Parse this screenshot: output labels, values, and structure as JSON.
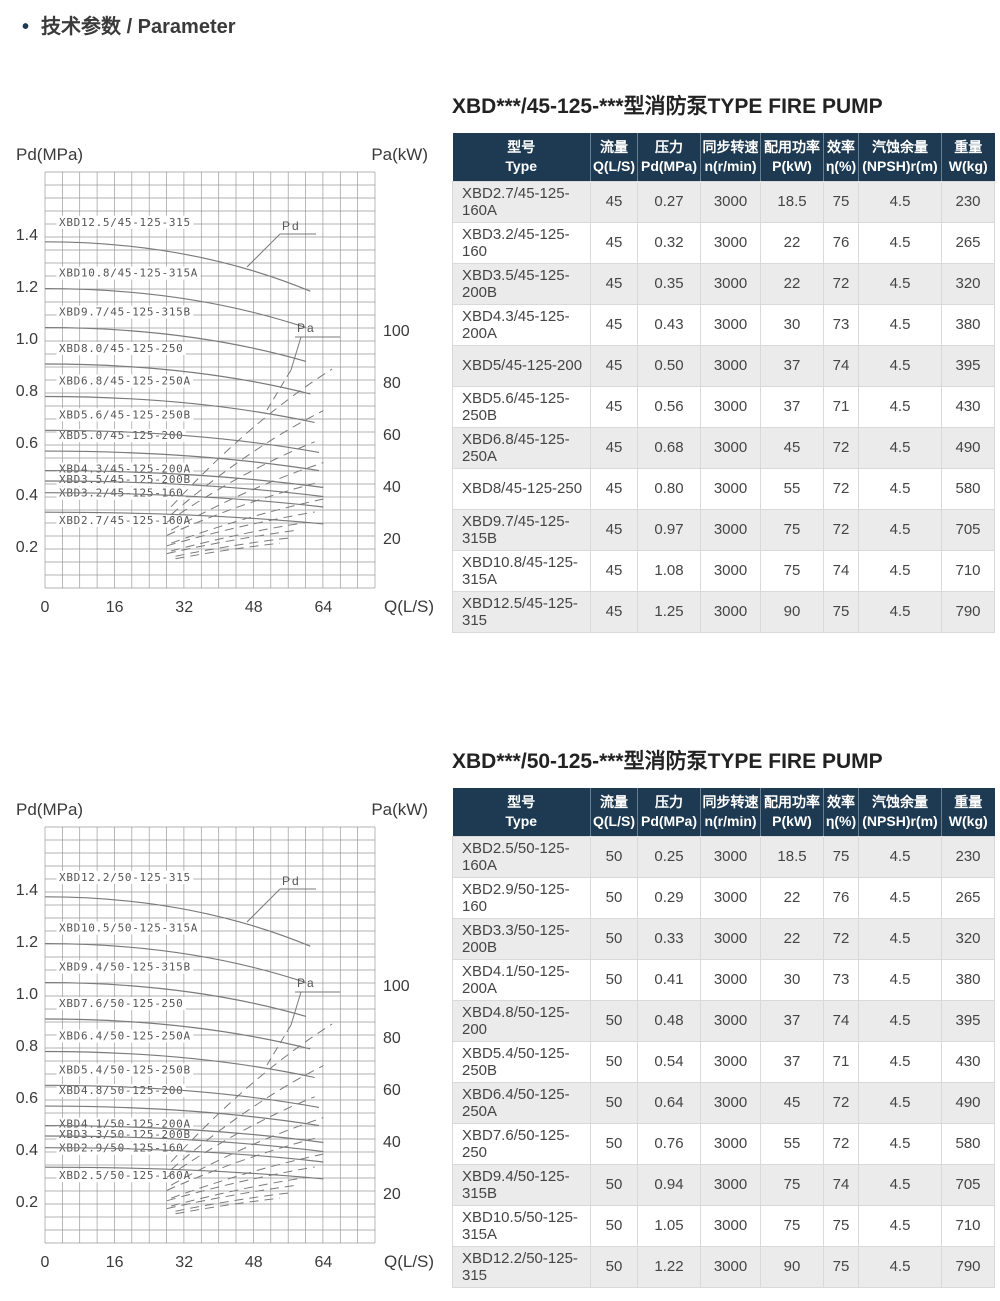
{
  "page": {
    "bullet": "•",
    "title": "技术参数 / Parameter"
  },
  "colors": {
    "accent": "#1d3a52",
    "header_bg": "#1d3a52",
    "row_alt": "#ebebeb",
    "border": "#d9d9d9",
    "text": "#3a3a3a",
    "chart_grid": "#9a9a9a",
    "chart_line": "#7a7a7a",
    "chart_label": "#555555"
  },
  "tables": [
    {
      "title": "XBD***/45-125-***型消防泵TYPE FIRE PUMP",
      "columns": [
        {
          "zh": "型号",
          "en": "Type"
        },
        {
          "zh": "流量",
          "en": "Q(L/S)"
        },
        {
          "zh": "压力",
          "en": "Pd(MPa)"
        },
        {
          "zh": "同步转速",
          "en": "n(r/min)"
        },
        {
          "zh": "配用功率",
          "en": "P(kW)"
        },
        {
          "zh": "效率",
          "en": "η(%)"
        },
        {
          "zh": "汽蚀余量",
          "en": "(NPSH)r(m)"
        },
        {
          "zh": "重量",
          "en": "W(kg)"
        }
      ],
      "rows": [
        [
          "XBD2.7/45-125-160A",
          "45",
          "0.27",
          "3000",
          "18.5",
          "75",
          "4.5",
          "230"
        ],
        [
          "XBD3.2/45-125-160",
          "45",
          "0.32",
          "3000",
          "22",
          "76",
          "4.5",
          "265"
        ],
        [
          "XBD3.5/45-125-200B",
          "45",
          "0.35",
          "3000",
          "22",
          "72",
          "4.5",
          "320"
        ],
        [
          "XBD4.3/45-125-200A",
          "45",
          "0.43",
          "3000",
          "30",
          "73",
          "4.5",
          "380"
        ],
        [
          "XBD5/45-125-200",
          "45",
          "0.50",
          "3000",
          "37",
          "74",
          "4.5",
          "395"
        ],
        [
          "XBD5.6/45-125-250B",
          "45",
          "0.56",
          "3000",
          "37",
          "71",
          "4.5",
          "430"
        ],
        [
          "XBD6.8/45-125-250A",
          "45",
          "0.68",
          "3000",
          "45",
          "72",
          "4.5",
          "490"
        ],
        [
          "XBD8/45-125-250",
          "45",
          "0.80",
          "3000",
          "55",
          "72",
          "4.5",
          "580"
        ],
        [
          "XBD9.7/45-125-315B",
          "45",
          "0.97",
          "3000",
          "75",
          "72",
          "4.5",
          "705"
        ],
        [
          "XBD10.8/45-125-315A",
          "45",
          "1.08",
          "3000",
          "75",
          "74",
          "4.5",
          "710"
        ],
        [
          "XBD12.5/45-125-315",
          "45",
          "1.25",
          "3000",
          "90",
          "75",
          "4.5",
          "790"
        ]
      ]
    },
    {
      "title": "XBD***/50-125-***型消防泵TYPE FIRE PUMP",
      "columns": [
        {
          "zh": "型号",
          "en": "Type"
        },
        {
          "zh": "流量",
          "en": "Q(L/S)"
        },
        {
          "zh": "压力",
          "en": "Pd(MPa)"
        },
        {
          "zh": "同步转速",
          "en": "n(r/min)"
        },
        {
          "zh": "配用功率",
          "en": "P(kW)"
        },
        {
          "zh": "效率",
          "en": "η(%)"
        },
        {
          "zh": "汽蚀余量",
          "en": "(NPSH)r(m)"
        },
        {
          "zh": "重量",
          "en": "W(kg)"
        }
      ],
      "rows": [
        [
          "XBD2.5/50-125-160A",
          "50",
          "0.25",
          "3000",
          "18.5",
          "75",
          "4.5",
          "230"
        ],
        [
          "XBD2.9/50-125-160",
          "50",
          "0.29",
          "3000",
          "22",
          "76",
          "4.5",
          "265"
        ],
        [
          "XBD3.3/50-125-200B",
          "50",
          "0.33",
          "3000",
          "22",
          "72",
          "4.5",
          "320"
        ],
        [
          "XBD4.1/50-125-200A",
          "50",
          "0.41",
          "3000",
          "30",
          "73",
          "4.5",
          "380"
        ],
        [
          "XBD4.8/50-125-200",
          "50",
          "0.48",
          "3000",
          "37",
          "74",
          "4.5",
          "395"
        ],
        [
          "XBD5.4/50-125-250B",
          "50",
          "0.54",
          "3000",
          "37",
          "71",
          "4.5",
          "430"
        ],
        [
          "XBD6.4/50-125-250A",
          "50",
          "0.64",
          "3000",
          "45",
          "72",
          "4.5",
          "490"
        ],
        [
          "XBD7.6/50-125-250",
          "50",
          "0.76",
          "3000",
          "55",
          "72",
          "4.5",
          "580"
        ],
        [
          "XBD9.4/50-125-315B",
          "50",
          "0.94",
          "3000",
          "75",
          "74",
          "4.5",
          "705"
        ],
        [
          "XBD10.5/50-125-315A",
          "50",
          "1.05",
          "3000",
          "75",
          "75",
          "4.5",
          "710"
        ],
        [
          "XBD12.2/50-125-315",
          "50",
          "1.22",
          "3000",
          "90",
          "75",
          "4.5",
          "790"
        ]
      ]
    }
  ],
  "chart_data": [
    {
      "type": "line",
      "xlabel": "Q(L/S)",
      "ylabel_left": "Pd(MPa)",
      "ylabel_right": "Pa(kW)",
      "x_ticks": [
        "0",
        "16",
        "32",
        "48",
        "64"
      ],
      "y_ticks_left": [
        "0.2",
        "0.4",
        "0.6",
        "0.8",
        "1.0",
        "1.2",
        "1.4"
      ],
      "y_ticks_right": [
        "20",
        "40",
        "60",
        "80",
        "100"
      ],
      "xlim": [
        0,
        76
      ],
      "ylim_left": [
        0.03,
        1.63
      ],
      "ylim_right": [
        0,
        160
      ],
      "grid": true,
      "annotations": {
        "pd": "Pd",
        "pa": "Pa"
      },
      "pd_curves": [
        {
          "label": "XBD12.5/45-125-315",
          "q": [
            0,
            61
          ],
          "pd": [
            1.37,
            1.18
          ]
        },
        {
          "label": "XBD10.8/45-125-315A",
          "q": [
            0,
            60
          ],
          "pd": [
            1.19,
            1.04
          ]
        },
        {
          "label": "XBD9.7/45-125-315B",
          "q": [
            0,
            60
          ],
          "pd": [
            1.04,
            0.91
          ]
        },
        {
          "label": "XBD8.0/45-125-250",
          "q": [
            0,
            61
          ],
          "pd": [
            0.9,
            0.785
          ]
        },
        {
          "label": "XBD6.8/45-125-250A",
          "q": [
            0,
            62
          ],
          "pd": [
            0.775,
            0.675
          ]
        },
        {
          "label": "XBD5.6/45-125-250B",
          "q": [
            0,
            63
          ],
          "pd": [
            0.645,
            0.56
          ]
        },
        {
          "label": "XBD5.0/45-125-200",
          "q": [
            0,
            63
          ],
          "pd": [
            0.565,
            0.49
          ]
        },
        {
          "label": "XBD4.3/45-125-200A",
          "q": [
            0,
            64
          ],
          "pd": [
            0.49,
            0.425
          ]
        },
        {
          "label": "XBD3.5/45-125-200B",
          "q": [
            0,
            64
          ],
          "pd": [
            0.45,
            0.39
          ]
        },
        {
          "label": "XBD3.2/45-125-160",
          "q": [
            0,
            64
          ],
          "pd": [
            0.405,
            0.35
          ]
        },
        {
          "label": "XBD2.7/45-125-160A",
          "q": [
            0,
            64
          ],
          "pd": [
            0.33,
            0.285
          ]
        }
      ],
      "pa_curves": [
        {
          "q": [
            29,
            66
          ],
          "pa": [
            32,
            85
          ]
        },
        {
          "q": [
            29,
            64
          ],
          "pa": [
            29,
            69
          ]
        },
        {
          "q": [
            28,
            62
          ],
          "pa": [
            26,
            57
          ]
        },
        {
          "q": [
            29,
            64
          ],
          "pa": [
            23,
            49
          ]
        },
        {
          "q": [
            28,
            62
          ],
          "pa": [
            21,
            41
          ]
        },
        {
          "q": [
            29,
            64
          ],
          "pa": [
            18,
            35
          ]
        },
        {
          "q": [
            28,
            62
          ],
          "pa": [
            17,
            30
          ]
        },
        {
          "q": [
            29,
            60
          ],
          "pa": [
            15,
            26
          ]
        },
        {
          "q": [
            28,
            58
          ],
          "pa": [
            14,
            23
          ]
        },
        {
          "q": [
            30,
            56
          ],
          "pa": [
            13,
            20
          ]
        },
        {
          "q": [
            30,
            54
          ],
          "pa": [
            12,
            18
          ]
        }
      ]
    },
    {
      "type": "line",
      "xlabel": "Q(L/S)",
      "ylabel_left": "Pd(MPa)",
      "ylabel_right": "Pa(kW)",
      "x_ticks": [
        "0",
        "16",
        "32",
        "48",
        "64"
      ],
      "y_ticks_left": [
        "0.2",
        "0.4",
        "0.6",
        "0.8",
        "1.0",
        "1.2",
        "1.4"
      ],
      "y_ticks_right": [
        "20",
        "40",
        "60",
        "80",
        "100"
      ],
      "xlim": [
        0,
        76
      ],
      "ylim_left": [
        0.03,
        1.63
      ],
      "ylim_right": [
        0,
        160
      ],
      "grid": true,
      "annotations": {
        "pd": "Pd",
        "pa": "Pa"
      },
      "pd_curves": [
        {
          "label": "XBD12.2/50-125-315",
          "q": [
            0,
            61
          ],
          "pd": [
            1.37,
            1.18
          ]
        },
        {
          "label": "XBD10.5/50-125-315A",
          "q": [
            0,
            60
          ],
          "pd": [
            1.19,
            1.04
          ]
        },
        {
          "label": "XBD9.4/50-125-315B",
          "q": [
            0,
            60
          ],
          "pd": [
            1.04,
            0.91
          ]
        },
        {
          "label": "XBD7.6/50-125-250",
          "q": [
            0,
            61
          ],
          "pd": [
            0.9,
            0.785
          ]
        },
        {
          "label": "XBD6.4/50-125-250A",
          "q": [
            0,
            62
          ],
          "pd": [
            0.775,
            0.675
          ]
        },
        {
          "label": "XBD5.4/50-125-250B",
          "q": [
            0,
            63
          ],
          "pd": [
            0.645,
            0.56
          ]
        },
        {
          "label": "XBD4.8/50-125-200",
          "q": [
            0,
            63
          ],
          "pd": [
            0.565,
            0.49
          ]
        },
        {
          "label": "XBD4.1/50-125-200A",
          "q": [
            0,
            64
          ],
          "pd": [
            0.49,
            0.425
          ]
        },
        {
          "label": "XBD3.3/50-125-200B",
          "q": [
            0,
            64
          ],
          "pd": [
            0.45,
            0.39
          ]
        },
        {
          "label": "XBD2.9/50-125-160",
          "q": [
            0,
            64
          ],
          "pd": [
            0.405,
            0.35
          ]
        },
        {
          "label": "XBD2.5/50-125-160A",
          "q": [
            0,
            64
          ],
          "pd": [
            0.33,
            0.285
          ]
        }
      ],
      "pa_curves": [
        {
          "q": [
            29,
            66
          ],
          "pa": [
            32,
            85
          ]
        },
        {
          "q": [
            29,
            64
          ],
          "pa": [
            29,
            69
          ]
        },
        {
          "q": [
            28,
            62
          ],
          "pa": [
            26,
            57
          ]
        },
        {
          "q": [
            29,
            64
          ],
          "pa": [
            23,
            49
          ]
        },
        {
          "q": [
            28,
            62
          ],
          "pa": [
            21,
            41
          ]
        },
        {
          "q": [
            29,
            64
          ],
          "pa": [
            18,
            35
          ]
        },
        {
          "q": [
            28,
            62
          ],
          "pa": [
            17,
            30
          ]
        },
        {
          "q": [
            29,
            60
          ],
          "pa": [
            15,
            26
          ]
        },
        {
          "q": [
            28,
            58
          ],
          "pa": [
            14,
            23
          ]
        },
        {
          "q": [
            30,
            56
          ],
          "pa": [
            13,
            20
          ]
        },
        {
          "q": [
            30,
            54
          ],
          "pa": [
            12,
            18
          ]
        }
      ]
    }
  ]
}
